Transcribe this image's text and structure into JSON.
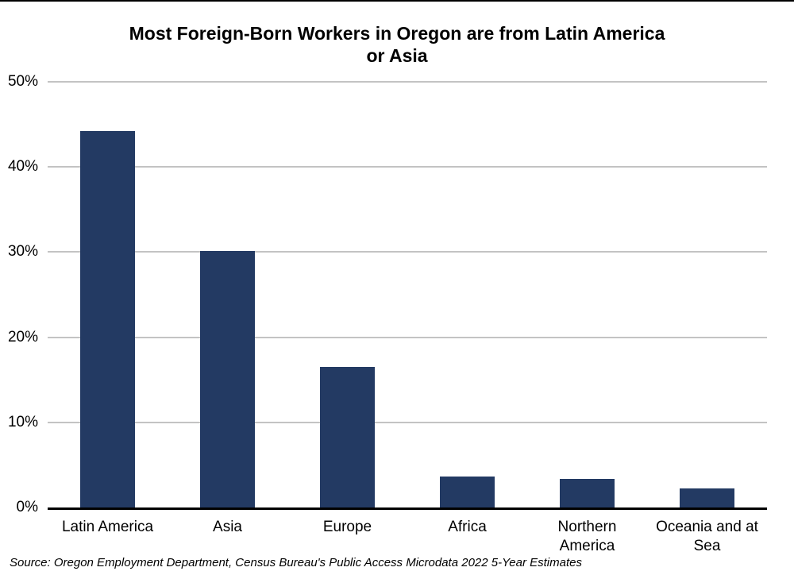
{
  "title_lines": [
    "Most Foreign-Born Workers in Oregon are from Latin America",
    "or Asia"
  ],
  "chart_data": {
    "type": "bar",
    "title": "Most Foreign-Born Workers in Oregon are from Latin America or Asia",
    "categories": [
      "Latin America",
      "Asia",
      "Europe",
      "Africa",
      "Northern\nAmerica",
      "Oceania and at\nSea"
    ],
    "values": [
      44.2,
      30.1,
      16.5,
      3.6,
      3.4,
      2.2
    ],
    "xlabel": "",
    "ylabel": "",
    "ylim": [
      0,
      50
    ],
    "grid": true,
    "legend": "none",
    "yticks": [
      {
        "value": 0,
        "label": "0%"
      },
      {
        "value": 10,
        "label": "10%"
      },
      {
        "value": 20,
        "label": "20%"
      },
      {
        "value": 30,
        "label": "30%"
      },
      {
        "value": 40,
        "label": "40%"
      },
      {
        "value": 50,
        "label": "50%"
      }
    ],
    "bar_color": "#233A63",
    "gridline_color": "#C3C3C3",
    "axis_color": "#000000"
  },
  "source_note": "Source: Oregon Employment Department, Census Bureau's Public Access Microdata 2022 5-Year Estimates"
}
